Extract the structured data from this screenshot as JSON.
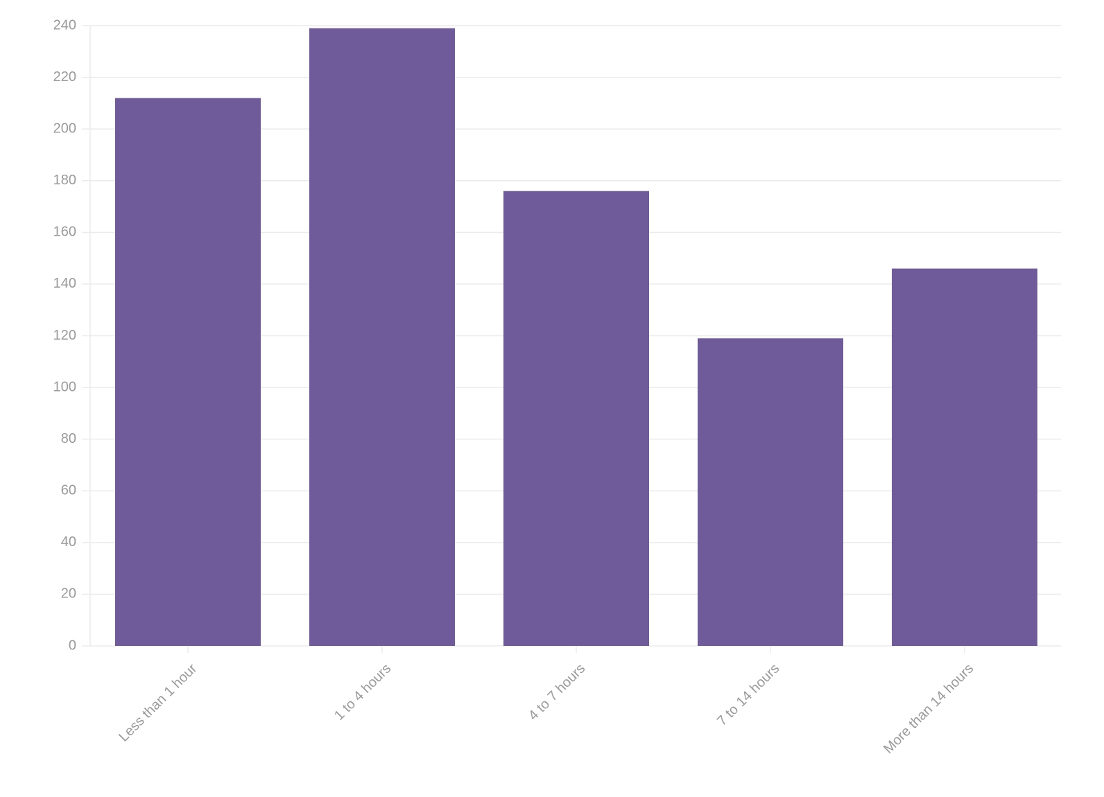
{
  "chart_data": {
    "type": "bar",
    "categories": [
      "Less than 1 hour",
      "1 to 4 hours",
      "4 to 7 hours",
      "7 to 14 hours",
      "More than 14 hours"
    ],
    "values": [
      212,
      239,
      176,
      119,
      146
    ],
    "color": "#6f5b99",
    "ylim": [
      0,
      240
    ],
    "yticks": [
      0,
      20,
      40,
      60,
      80,
      100,
      120,
      140,
      160,
      180,
      200,
      220,
      240
    ],
    "grid": true
  }
}
